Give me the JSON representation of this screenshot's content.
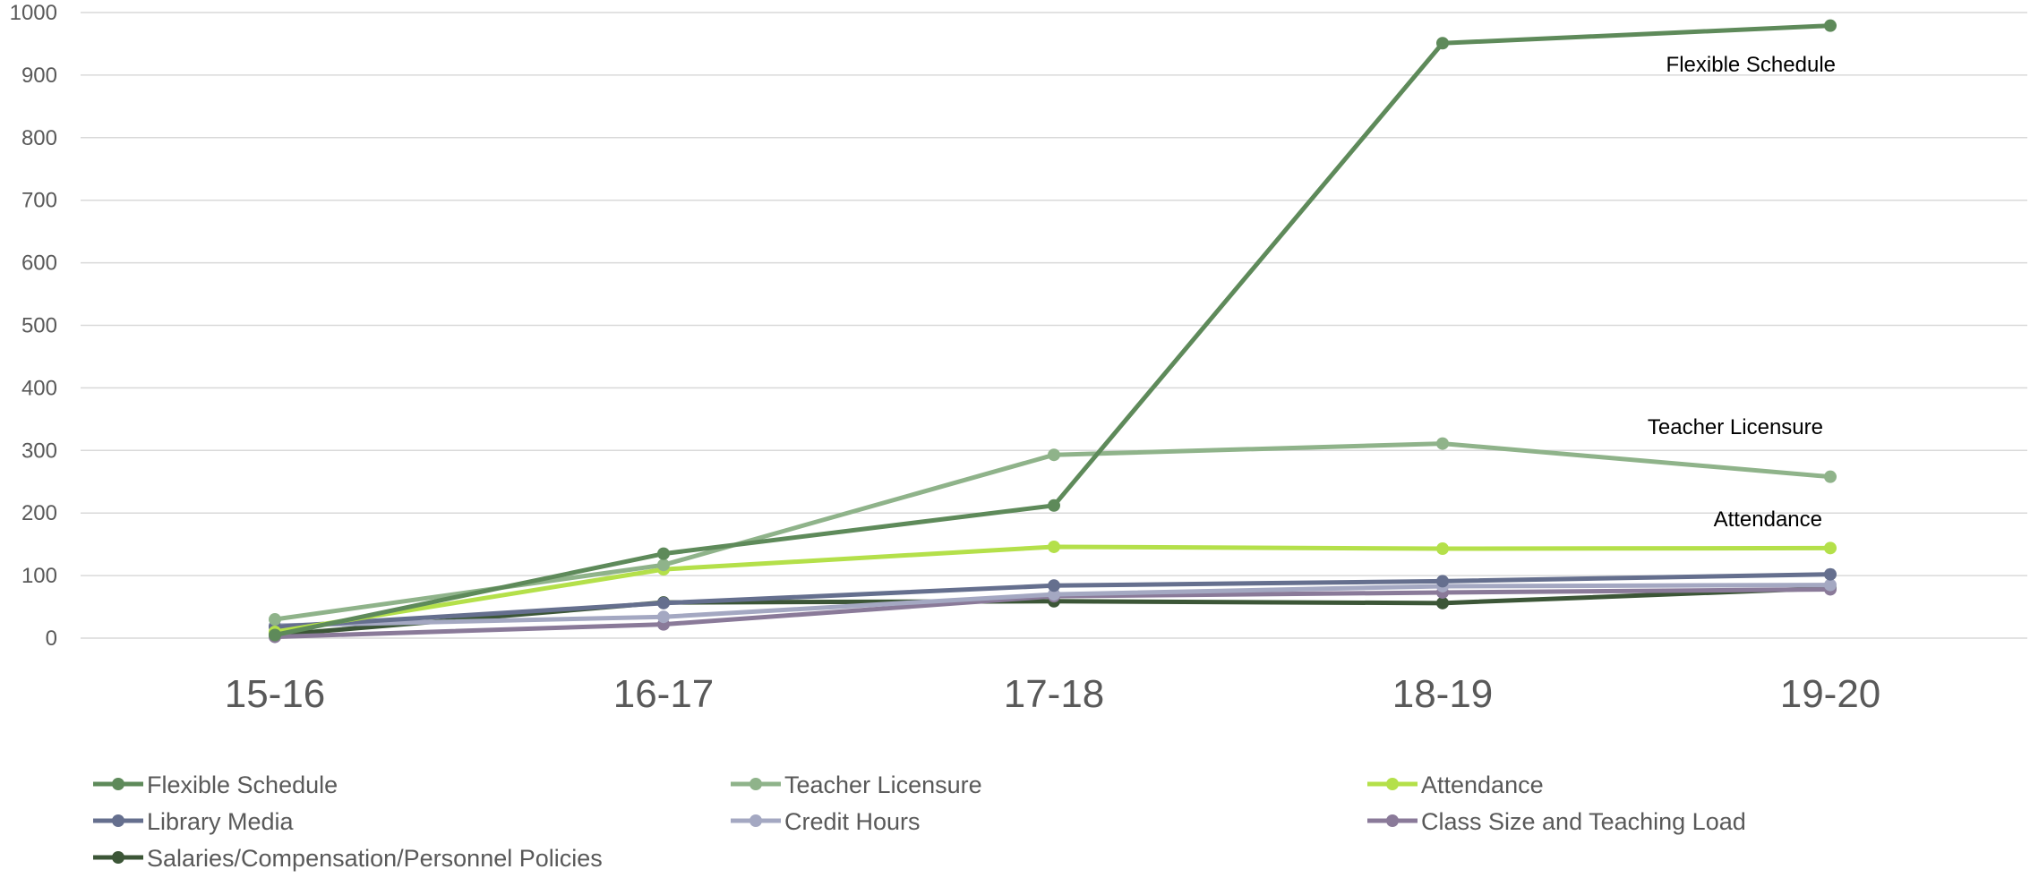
{
  "chart_data": {
    "type": "line",
    "title": "",
    "xlabel": "",
    "ylabel": "",
    "categories": [
      "15-16",
      "16-17",
      "17-18",
      "18-19",
      "19-20"
    ],
    "ylim": [
      0,
      1000
    ],
    "yticks": [
      0,
      100,
      200,
      300,
      400,
      500,
      600,
      700,
      800,
      900,
      1000
    ],
    "grid": true,
    "legend_position": "bottom",
    "series": [
      {
        "name": "Flexible Schedule",
        "color": "#5e8a5a",
        "values": [
          5,
          135,
          212,
          951,
          979
        ]
      },
      {
        "name": "Teacher Licensure",
        "color": "#8fb38a",
        "values": [
          30,
          117,
          293,
          311,
          258
        ]
      },
      {
        "name": "Attendance",
        "color": "#b4e04a",
        "values": [
          10,
          110,
          146,
          143,
          144
        ]
      },
      {
        "name": "Library Media",
        "color": "#656f8e",
        "values": [
          18,
          56,
          84,
          91,
          102
        ]
      },
      {
        "name": "Credit Hours",
        "color": "#a4a8c2",
        "values": [
          20,
          34,
          70,
          83,
          85
        ]
      },
      {
        "name": "Class Size and Teaching Load",
        "color": "#8a7a99",
        "values": [
          2,
          22,
          67,
          73,
          78
        ]
      },
      {
        "name": "Salaries/Compensation/Personnel Policies",
        "color": "#3c5637",
        "values": [
          5,
          57,
          59,
          56,
          80
        ]
      }
    ],
    "annotations": [
      "Flexible Schedule",
      "Teacher Licensure",
      "Attendance"
    ]
  }
}
